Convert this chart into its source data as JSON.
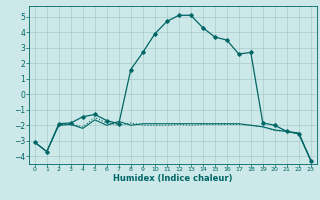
{
  "xlabel": "Humidex (Indice chaleur)",
  "bg_color": "#cde8e8",
  "grid_color": "#aacccc",
  "line_color": "#006666",
  "xlim": [
    -0.5,
    23.5
  ],
  "ylim": [
    -4.5,
    5.7
  ],
  "xticks": [
    0,
    1,
    2,
    3,
    4,
    5,
    6,
    7,
    8,
    9,
    10,
    11,
    12,
    13,
    14,
    15,
    16,
    17,
    18,
    19,
    20,
    21,
    22,
    23
  ],
  "yticks": [
    -4,
    -3,
    -2,
    -1,
    0,
    1,
    2,
    3,
    4,
    5
  ],
  "line1_x": [
    0,
    1,
    2,
    3,
    4,
    5,
    6,
    7,
    8,
    9,
    10,
    11,
    12,
    13,
    14,
    15,
    16,
    17,
    18,
    19,
    20,
    21,
    22,
    23
  ],
  "line1_y": [
    -3.1,
    -3.7,
    -2.0,
    -1.9,
    -2.1,
    -1.5,
    -1.85,
    -2.0,
    -1.85,
    -2.0,
    -2.0,
    -2.0,
    -1.95,
    -2.0,
    -1.95,
    -1.95,
    -1.95,
    -1.95,
    -2.0,
    -2.1,
    -2.35,
    -2.4,
    -2.55,
    -4.25
  ],
  "line2_x": [
    0,
    1,
    2,
    3,
    4,
    5,
    6,
    7,
    8,
    9,
    10,
    11,
    12,
    13,
    14,
    15,
    16,
    17,
    18,
    19,
    20,
    21,
    22,
    23
  ],
  "line2_y": [
    -3.1,
    -3.7,
    -2.0,
    -1.95,
    -2.2,
    -1.65,
    -2.0,
    -1.75,
    -2.0,
    -1.9,
    -1.9,
    -1.9,
    -1.9,
    -1.9,
    -1.9,
    -1.9,
    -1.9,
    -1.9,
    -2.0,
    -2.1,
    -2.3,
    -2.4,
    -2.5,
    -4.25
  ],
  "line3_x": [
    0,
    1,
    2,
    3,
    4,
    5,
    6,
    7,
    8,
    9,
    10,
    11,
    12,
    13,
    14,
    15,
    16,
    17,
    18,
    19,
    20,
    21,
    22,
    23
  ],
  "line3_y": [
    -3.1,
    -3.7,
    -1.9,
    -1.85,
    -1.45,
    -1.3,
    -1.7,
    -1.9,
    1.6,
    2.7,
    3.9,
    4.7,
    5.1,
    5.1,
    4.3,
    3.7,
    3.5,
    2.6,
    2.7,
    -1.85,
    -2.0,
    -2.4,
    -2.55,
    -4.3
  ]
}
